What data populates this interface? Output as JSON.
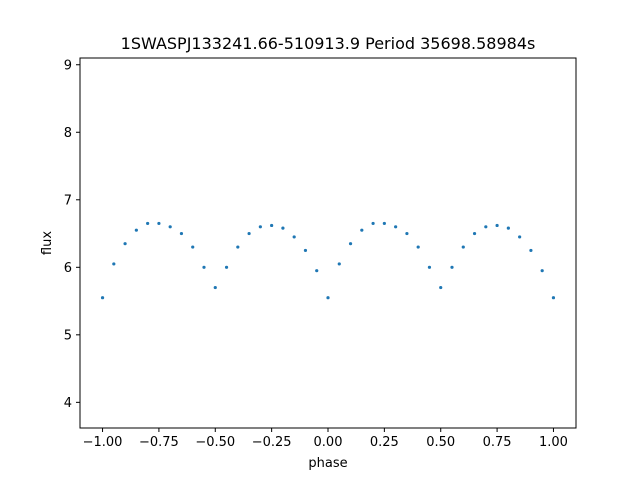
{
  "chart_data": {
    "type": "scatter",
    "title": "1SWASPJ133241.66-510913.9 Period 35698.58984s",
    "xlabel": "phase",
    "ylabel": "flux",
    "xlim": [
      -1.1,
      1.1
    ],
    "ylim": [
      3.62,
      9.1
    ],
    "xticks": [
      -1.0,
      -0.75,
      -0.5,
      -0.25,
      0.0,
      0.25,
      0.5,
      0.75,
      1.0
    ],
    "xtick_labels": [
      "−1.00",
      "−0.75",
      "−0.50",
      "−0.25",
      "0.00",
      "0.25",
      "0.50",
      "0.75",
      "1.00"
    ],
    "yticks": [
      4,
      5,
      6,
      7,
      8,
      9
    ],
    "ytick_labels": [
      "4",
      "5",
      "6",
      "7",
      "8",
      "9"
    ],
    "grid": false,
    "marker_color": "#1f77b4",
    "series": [
      {
        "x": [
          -1.0,
          -0.95,
          -0.9,
          -0.85,
          -0.8,
          -0.75,
          -0.7,
          -0.65,
          -0.6,
          -0.55,
          -0.5,
          -0.45,
          -0.4,
          -0.35,
          -0.3,
          -0.25,
          -0.2,
          -0.15,
          -0.1,
          -0.05,
          0.0,
          0.05,
          0.1,
          0.15,
          0.2,
          0.25,
          0.3,
          0.35,
          0.4,
          0.45,
          0.5,
          0.55,
          0.6,
          0.65,
          0.7,
          0.75,
          0.8,
          0.85,
          0.9,
          0.95,
          1.0
        ],
        "y": [
          5.55,
          6.05,
          6.35,
          6.55,
          6.65,
          6.65,
          6.6,
          6.5,
          6.3,
          6.0,
          5.7,
          6.0,
          6.3,
          6.5,
          6.6,
          6.62,
          6.58,
          6.45,
          6.25,
          5.95,
          5.55,
          6.05,
          6.35,
          6.55,
          6.65,
          6.65,
          6.6,
          6.5,
          6.3,
          6.0,
          5.7,
          6.0,
          6.3,
          6.5,
          6.6,
          6.62,
          6.58,
          6.45,
          6.25,
          5.95,
          5.55
        ]
      }
    ]
  }
}
